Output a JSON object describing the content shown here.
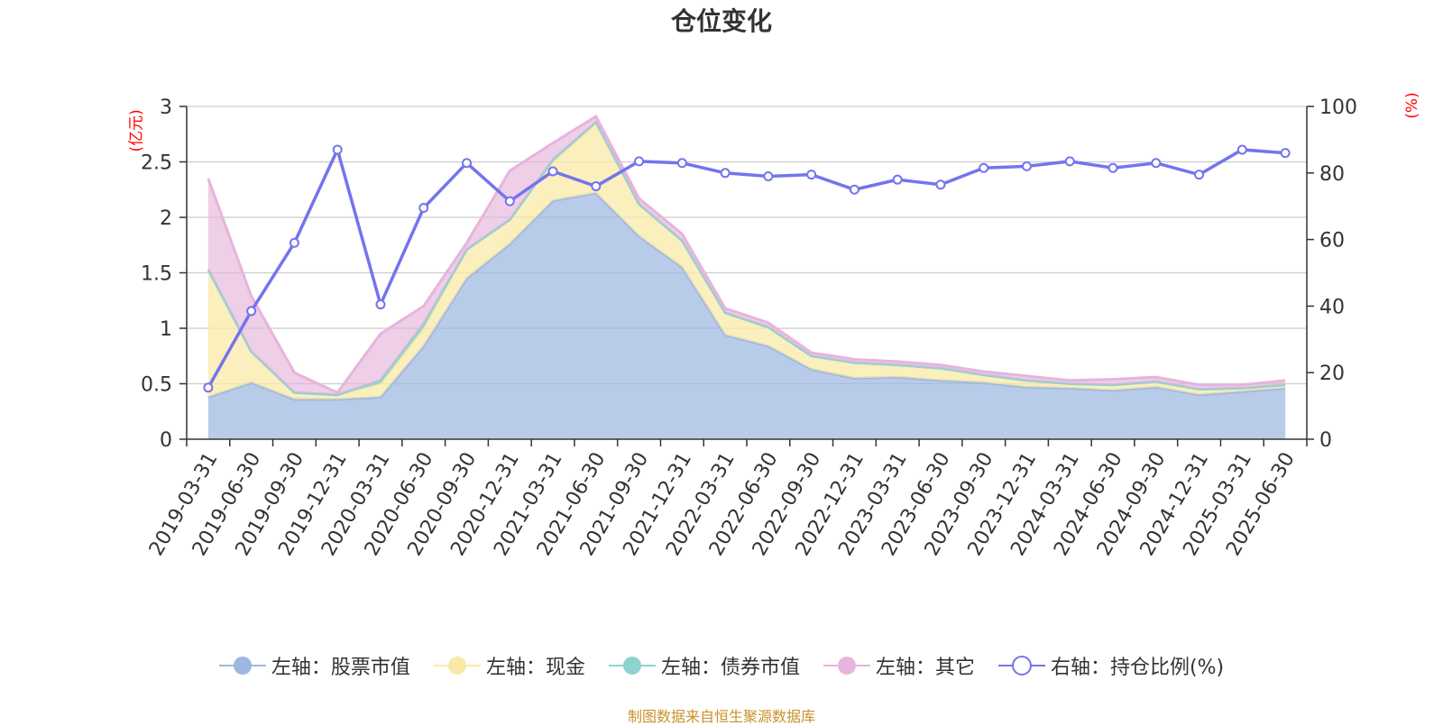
{
  "title": "仓位变化",
  "left_axis_unit": "(亿元)",
  "right_axis_unit": "(%)",
  "footer": "制图数据来自恒生聚源数据库",
  "legend": [
    {
      "label": "左轴：股票市值",
      "color": "#9db7e0",
      "marker": "filled-circle"
    },
    {
      "label": "左轴：现金",
      "color": "#f9e9a7",
      "marker": "filled-circle"
    },
    {
      "label": "左轴：债券市值",
      "color": "#8ed3d0",
      "marker": "filled-circle"
    },
    {
      "label": "左轴：其它",
      "color": "#e6b4dc",
      "marker": "filled-circle"
    },
    {
      "label": "右轴：持仓比例(%)",
      "color": "#7474ee",
      "marker": "hollow-circle"
    }
  ],
  "chart_data": {
    "type": "area",
    "categories": [
      "2019-03-31",
      "2019-06-30",
      "2019-09-30",
      "2019-12-31",
      "2020-03-31",
      "2020-06-30",
      "2020-09-30",
      "2020-12-31",
      "2021-03-31",
      "2021-06-30",
      "2021-09-30",
      "2021-12-31",
      "2022-03-31",
      "2022-06-30",
      "2022-09-30",
      "2022-12-31",
      "2023-03-31",
      "2023-06-30",
      "2023-09-30",
      "2023-12-31",
      "2024-03-31",
      "2024-06-30",
      "2024-09-30",
      "2024-12-31",
      "2025-03-31",
      "2025-06-30"
    ],
    "left_axis": {
      "min": 0,
      "max": 3,
      "ticks": [
        "0",
        "0.5",
        "1",
        "1.5",
        "2",
        "2.5",
        "3"
      ]
    },
    "right_axis": {
      "min": 0,
      "max": 100,
      "ticks": [
        "0",
        "20",
        "40",
        "60",
        "80",
        "100"
      ]
    },
    "grid": true,
    "legend_position": "bottom",
    "series": [
      {
        "name": "左轴：股票市值",
        "axis": "left",
        "stacked": true,
        "color": "#9db7e0",
        "values": [
          0.38,
          0.51,
          0.36,
          0.36,
          0.38,
          0.84,
          1.45,
          1.76,
          2.15,
          2.22,
          1.83,
          1.55,
          0.94,
          0.84,
          0.63,
          0.55,
          0.56,
          0.53,
          0.51,
          0.47,
          0.46,
          0.44,
          0.47,
          0.4,
          0.43,
          0.46
        ]
      },
      {
        "name": "左轴：现金",
        "axis": "left",
        "stacked": true,
        "color": "#f9e9a7",
        "values": [
          1.15,
          0.28,
          0.06,
          0.04,
          0.12,
          0.16,
          0.26,
          0.22,
          0.35,
          0.63,
          0.29,
          0.24,
          0.2,
          0.17,
          0.12,
          0.14,
          0.11,
          0.11,
          0.07,
          0.06,
          0.04,
          0.05,
          0.05,
          0.05,
          0.03,
          0.03
        ]
      },
      {
        "name": "左轴：债券市值",
        "axis": "left",
        "stacked": true,
        "color": "#8ed3d0",
        "values": [
          0,
          0,
          0,
          0,
          0.03,
          0.04,
          0,
          0,
          0.02,
          0.01,
          0,
          0,
          0,
          0,
          0,
          0,
          0,
          0,
          0,
          0,
          0,
          0,
          0,
          0,
          0,
          0
        ]
      },
      {
        "name": "左轴：其它",
        "axis": "left",
        "stacked": true,
        "color": "#e6b4dc",
        "values": [
          0.82,
          0.5,
          0.18,
          0.02,
          0.42,
          0.16,
          0.06,
          0.44,
          0.15,
          0.05,
          0.05,
          0.06,
          0.04,
          0.04,
          0.03,
          0.03,
          0.03,
          0.03,
          0.03,
          0.04,
          0.03,
          0.05,
          0.04,
          0.04,
          0.03,
          0.04
        ]
      },
      {
        "name": "右轴：持仓比例(%)",
        "axis": "right",
        "stacked": false,
        "color": "#7474ee",
        "values": [
          15.5,
          38.5,
          59.0,
          87.0,
          40.5,
          69.5,
          83.0,
          71.5,
          80.5,
          76.0,
          83.5,
          83.0,
          80.0,
          79.0,
          79.5,
          75.0,
          78.0,
          76.5,
          81.5,
          82.0,
          83.5,
          81.5,
          83.0,
          79.5,
          87.0,
          86.0
        ]
      }
    ]
  }
}
